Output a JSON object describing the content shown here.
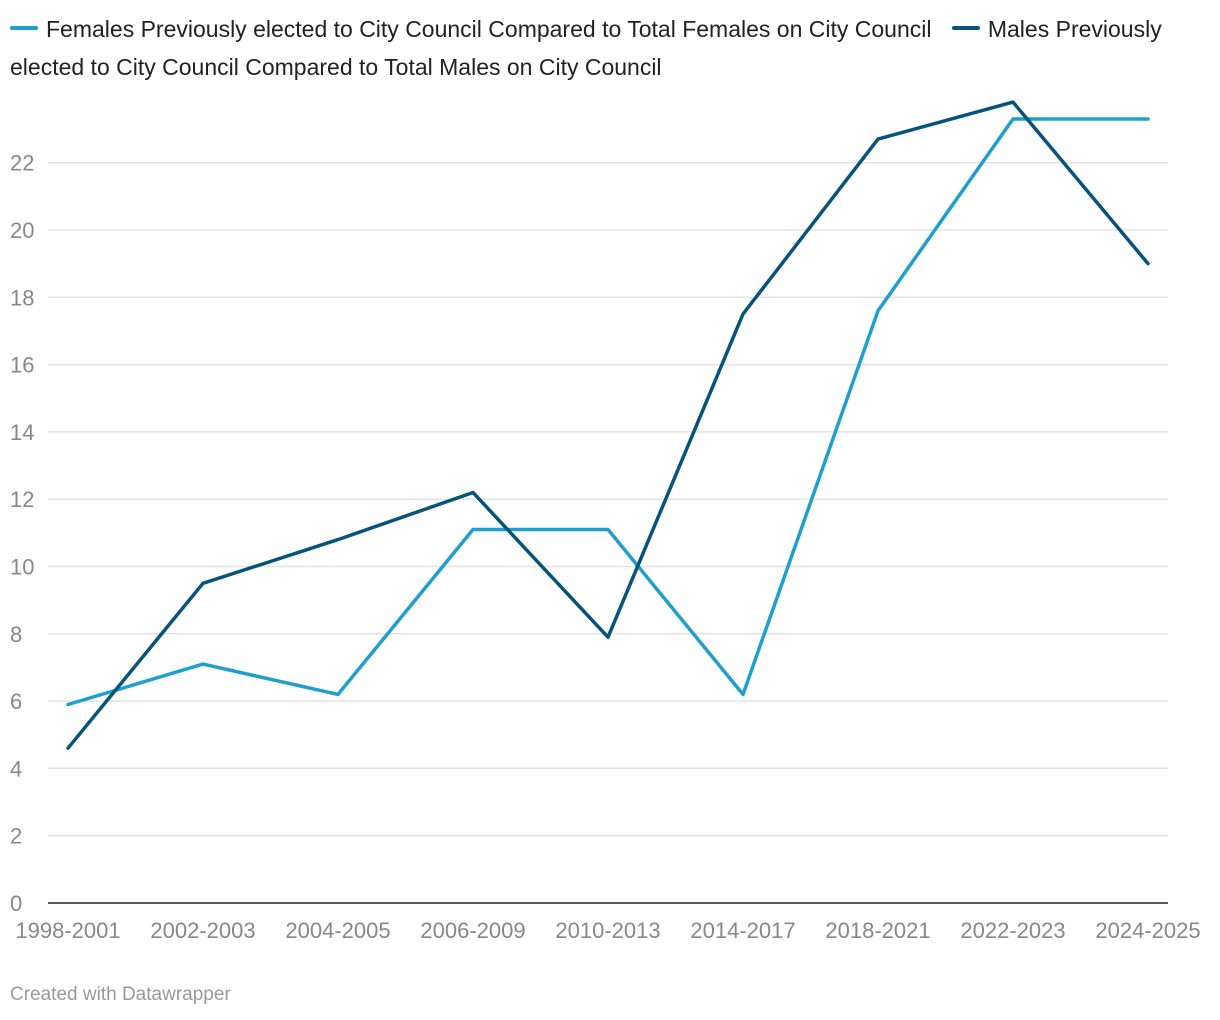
{
  "chart_data": {
    "type": "line",
    "categories": [
      "1998-2001",
      "2002-2003",
      "2004-2005",
      "2006-2009",
      "2010-2013",
      "2014-2017",
      "2018-2021",
      "2022-2023",
      "2024-2025"
    ],
    "series": [
      {
        "name": "Females Previously elected to City Council Compared to Total Females on City Council",
        "color": "#1f9fcd",
        "values": [
          5.9,
          7.1,
          6.2,
          11.1,
          11.1,
          6.2,
          17.6,
          23.3,
          23.3
        ]
      },
      {
        "name": "Males Previously elected to City Council Compared to Total Males on City Council",
        "color": "#06547a",
        "values": [
          4.6,
          9.5,
          10.8,
          12.2,
          7.9,
          17.5,
          22.7,
          23.8,
          19.0
        ]
      }
    ],
    "yticks": [
      0,
      2,
      4,
      6,
      8,
      10,
      12,
      14,
      16,
      18,
      20,
      22
    ],
    "ylim": [
      0,
      24
    ],
    "grid": true,
    "legend_position": "top-left"
  },
  "footer": {
    "credit": "Created with Datawrapper"
  }
}
